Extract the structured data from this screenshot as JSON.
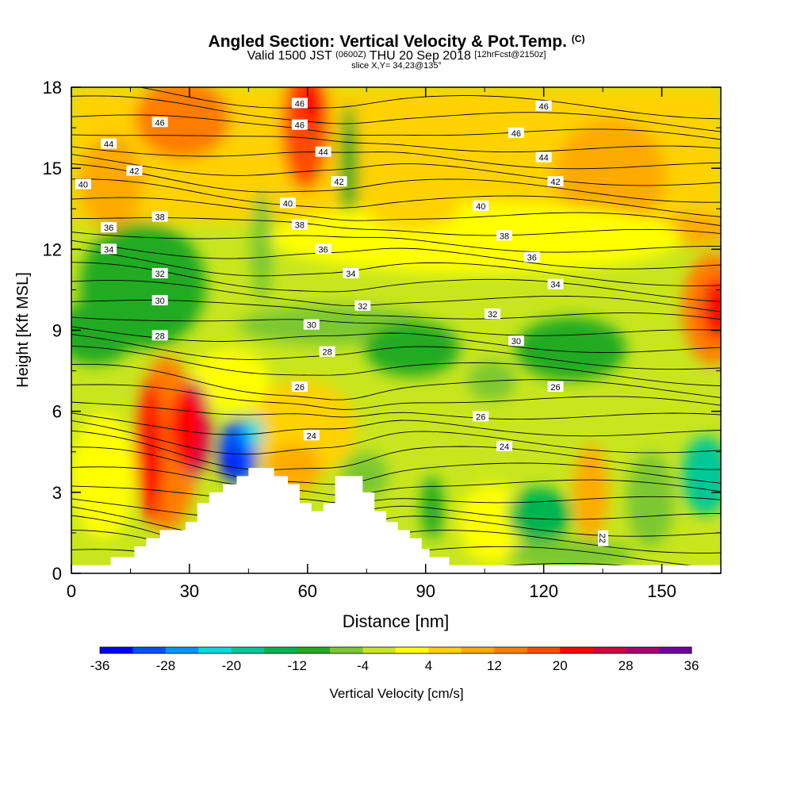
{
  "header": {
    "title": "Angled Section: Vertical Velocity & Pot.Temp.",
    "title_unit": "(C)",
    "valid_prefix": "Valid 1500 JST",
    "valid_z": "(0600Z)",
    "valid_date": "THU 20 Sep 2018",
    "forecast": "[12hrFcst@2150z]",
    "slice": "slice X,Y= 34,23@135°"
  },
  "chart_data": {
    "type": "heatmap",
    "xlabel": "Distance [nm]",
    "ylabel": "Height [Kft MSL]",
    "xlim": [
      0,
      165
    ],
    "ylim": [
      0,
      18
    ],
    "x_ticks": [
      "0",
      "30",
      "60",
      "90",
      "120",
      "150"
    ],
    "x_tick_values": [
      0,
      30,
      60,
      90,
      120,
      150
    ],
    "y_ticks": [
      "0",
      "3",
      "6",
      "9",
      "12",
      "15",
      "18"
    ],
    "y_tick_values": [
      0,
      3,
      6,
      9,
      12,
      15,
      18
    ],
    "colorbar": {
      "label": "Vertical Velocity [cm/s]",
      "tick_labels": [
        "-36",
        "-28",
        "-20",
        "-12",
        "-4",
        "4",
        "12",
        "20",
        "28",
        "36"
      ],
      "levels": [
        -36,
        -32,
        -28,
        -24,
        -20,
        -16,
        -12,
        -8,
        -4,
        0,
        4,
        8,
        12,
        16,
        20,
        24,
        28,
        32,
        36
      ],
      "colors": [
        "#0000ff",
        "#0050ff",
        "#0096ff",
        "#00dcdc",
        "#00c896",
        "#00b450",
        "#22aa22",
        "#7cc832",
        "#c8e61e",
        "#ffff00",
        "#ffd200",
        "#ffaa00",
        "#ff7d00",
        "#ff4b00",
        "#ff0000",
        "#d2003c",
        "#aa006e",
        "#6e00a0"
      ]
    },
    "theta_contour_labels": [
      {
        "value": "46",
        "x": 58,
        "y": 17.4
      },
      {
        "value": "46",
        "x": 120,
        "y": 17.3
      },
      {
        "value": "46",
        "x": 22.5,
        "y": 16.7
      },
      {
        "value": "46",
        "x": 58,
        "y": 16.6
      },
      {
        "value": "46",
        "x": 113,
        "y": 16.3
      },
      {
        "value": "44",
        "x": 9.5,
        "y": 15.9
      },
      {
        "value": "44",
        "x": 64,
        "y": 15.6
      },
      {
        "value": "44",
        "x": 120,
        "y": 15.4
      },
      {
        "value": "42",
        "x": 16,
        "y": 14.9
      },
      {
        "value": "42",
        "x": 68,
        "y": 14.5
      },
      {
        "value": "42",
        "x": 123,
        "y": 14.5
      },
      {
        "value": "40",
        "x": 3,
        "y": 14.4
      },
      {
        "value": "40",
        "x": 55,
        "y": 13.7
      },
      {
        "value": "40",
        "x": 104,
        "y": 13.6
      },
      {
        "value": "38",
        "x": 22.5,
        "y": 13.2
      },
      {
        "value": "38",
        "x": 58,
        "y": 12.9
      },
      {
        "value": "38",
        "x": 110,
        "y": 12.5
      },
      {
        "value": "36",
        "x": 9.5,
        "y": 12.8
      },
      {
        "value": "36",
        "x": 64,
        "y": 12.0
      },
      {
        "value": "36",
        "x": 117,
        "y": 11.7
      },
      {
        "value": "34",
        "x": 9.5,
        "y": 12.0
      },
      {
        "value": "34",
        "x": 71,
        "y": 11.1
      },
      {
        "value": "34",
        "x": 123,
        "y": 10.7
      },
      {
        "value": "32",
        "x": 22.5,
        "y": 11.1
      },
      {
        "value": "32",
        "x": 74,
        "y": 9.9
      },
      {
        "value": "32",
        "x": 107,
        "y": 9.6
      },
      {
        "value": "30",
        "x": 22.5,
        "y": 10.1
      },
      {
        "value": "30",
        "x": 61,
        "y": 9.2
      },
      {
        "value": "30",
        "x": 113,
        "y": 8.6
      },
      {
        "value": "28",
        "x": 22.5,
        "y": 8.8
      },
      {
        "value": "28",
        "x": 65,
        "y": 8.2
      },
      {
        "value": "26",
        "x": 58,
        "y": 6.9
      },
      {
        "value": "26",
        "x": 123,
        "y": 6.9
      },
      {
        "value": "26",
        "x": 104,
        "y": 5.8
      },
      {
        "value": "24",
        "x": 61,
        "y": 5.1
      },
      {
        "value": "24",
        "x": 110,
        "y": 4.7
      },
      {
        "value": "22",
        "x": 135,
        "y": 1.3
      }
    ],
    "terrain_profile": [
      [
        0,
        0.3
      ],
      [
        10,
        0.3
      ],
      [
        10,
        0.6
      ],
      [
        16,
        0.6
      ],
      [
        16,
        1.0
      ],
      [
        19,
        1.0
      ],
      [
        19,
        1.3
      ],
      [
        22.5,
        1.3
      ],
      [
        22.5,
        1.6
      ],
      [
        29,
        1.6
      ],
      [
        29,
        1.9
      ],
      [
        32,
        1.9
      ],
      [
        32,
        2.6
      ],
      [
        35,
        2.6
      ],
      [
        35,
        3.0
      ],
      [
        38.5,
        3.0
      ],
      [
        38.5,
        3.3
      ],
      [
        42,
        3.3
      ],
      [
        42,
        3.6
      ],
      [
        45,
        3.6
      ],
      [
        45,
        3.9
      ],
      [
        51.5,
        3.9
      ],
      [
        51.5,
        3.6
      ],
      [
        55,
        3.6
      ],
      [
        55,
        3.3
      ],
      [
        58,
        3.3
      ],
      [
        58,
        2.6
      ],
      [
        61,
        2.6
      ],
      [
        61,
        2.3
      ],
      [
        64,
        2.3
      ],
      [
        64,
        2.6
      ],
      [
        67,
        2.6
      ],
      [
        67,
        3.6
      ],
      [
        74,
        3.6
      ],
      [
        74,
        3.0
      ],
      [
        77,
        3.0
      ],
      [
        77,
        2.3
      ],
      [
        80,
        2.3
      ],
      [
        80,
        1.9
      ],
      [
        83,
        1.9
      ],
      [
        83,
        1.6
      ],
      [
        86,
        1.6
      ],
      [
        86,
        1.3
      ],
      [
        89,
        1.3
      ],
      [
        89,
        0.9
      ],
      [
        91,
        0.9
      ],
      [
        91,
        0.6
      ],
      [
        96,
        0.6
      ],
      [
        96,
        0.3
      ],
      [
        165,
        0.3
      ]
    ]
  }
}
